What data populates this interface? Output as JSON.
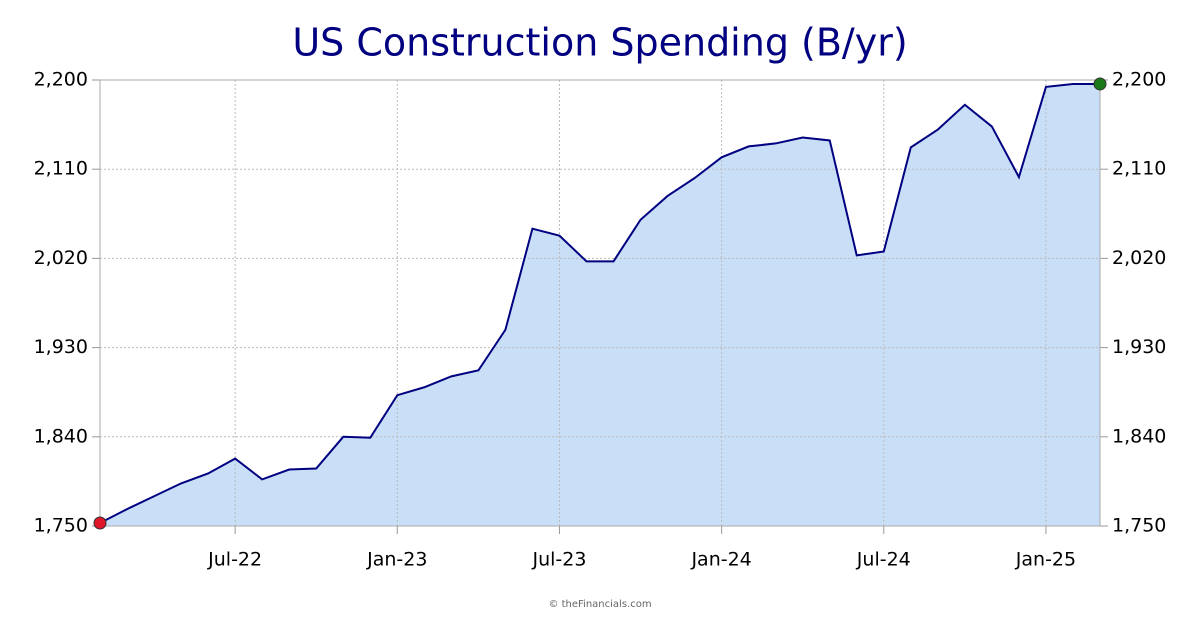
{
  "chart_data": {
    "type": "area",
    "title": "US Construction Spending (B/yr)",
    "x": [
      "2022-02",
      "2022-03",
      "2022-04",
      "2022-05",
      "2022-06",
      "2022-07",
      "2022-08",
      "2022-09",
      "2022-10",
      "2022-11",
      "2022-12",
      "2023-01",
      "2023-02",
      "2023-03",
      "2023-04",
      "2023-05",
      "2023-06",
      "2023-07",
      "2023-08",
      "2023-09",
      "2023-10",
      "2023-11",
      "2023-12",
      "2024-01",
      "2024-02",
      "2024-03",
      "2024-04",
      "2024-05",
      "2024-06",
      "2024-07",
      "2024-08",
      "2024-09",
      "2024-10",
      "2024-11",
      "2024-12",
      "2025-01",
      "2025-02",
      "2025-03"
    ],
    "series": [
      {
        "color": "#000080",
        "fill": "#c9dff7",
        "values": [
          1753,
          1767,
          1780,
          1793,
          1803,
          1818,
          1797,
          1807,
          1808,
          1840,
          1839,
          1882,
          1890,
          1901,
          1907,
          1948,
          2050,
          2043,
          2017,
          2017,
          2059,
          2083,
          2101,
          2122,
          2133,
          2136,
          2142,
          2139,
          2023,
          2027,
          2132,
          2150,
          2175,
          2153,
          2102,
          2193,
          2196,
          2196
        ]
      }
    ],
    "start_marker_color": "#e0162b",
    "end_marker_color": "#1a7a1a",
    "xlim": [
      "2022-02",
      "2025-03"
    ],
    "xticks": [
      {
        "value": "2022-07",
        "label": "Jul-22"
      },
      {
        "value": "2023-01",
        "label": "Jan-23"
      },
      {
        "value": "2023-07",
        "label": "Jul-23"
      },
      {
        "value": "2024-01",
        "label": "Jan-24"
      },
      {
        "value": "2024-07",
        "label": "Jul-24"
      },
      {
        "value": "2025-01",
        "label": "Jan-25"
      }
    ],
    "ylim": [
      1750,
      2200
    ],
    "yticks": [
      {
        "value": 1750,
        "label": "1,750"
      },
      {
        "value": 1840,
        "label": "1,840"
      },
      {
        "value": 1930,
        "label": "1,930"
      },
      {
        "value": 2020,
        "label": "2,020"
      },
      {
        "value": 2110,
        "label": "2,110"
      },
      {
        "value": 2200,
        "label": "2,200"
      }
    ],
    "grid": true,
    "source": "© theFinancials.com"
  }
}
